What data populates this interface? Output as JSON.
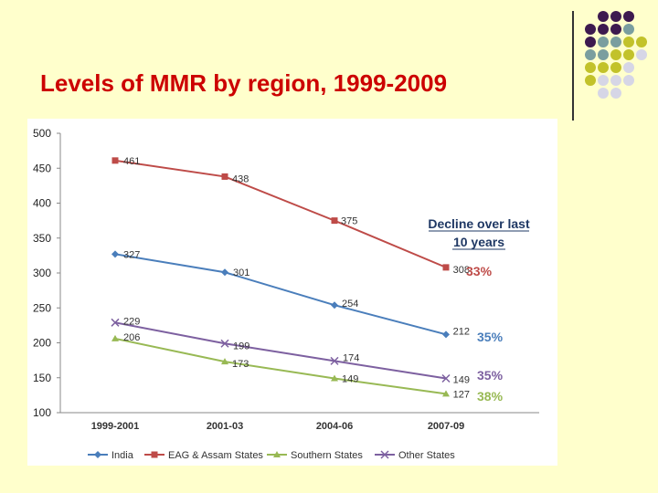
{
  "slide": {
    "title": "Levels of MMR by region, 1999-2009"
  },
  "decoration": {
    "dot_colors": [
      "#3d1a4f",
      "#7a9e9f",
      "#c2c22a",
      "#d6d6e6"
    ]
  },
  "chart_data": {
    "type": "line",
    "title": "",
    "xlabel": "",
    "ylabel": "",
    "categories": [
      "1999-2001",
      "2001-03",
      "2004-06",
      "2007-09"
    ],
    "ylim": [
      100,
      500
    ],
    "yticks": [
      100,
      150,
      200,
      250,
      300,
      350,
      400,
      450,
      500
    ],
    "grid": false,
    "legend_position": "bottom",
    "series": [
      {
        "name": "India",
        "values": [
          327,
          301,
          254,
          212
        ],
        "color": "#4a7ebb",
        "marker": "diamond",
        "decline": "35%"
      },
      {
        "name": "EAG & Assam States",
        "values": [
          461,
          438,
          375,
          308
        ],
        "color": "#be4b48",
        "marker": "square",
        "decline": "33%"
      },
      {
        "name": "Southern States",
        "values": [
          206,
          173,
          149,
          127
        ],
        "color": "#98b954",
        "marker": "triangle",
        "decline": "38%"
      },
      {
        "name": "Other States",
        "values": [
          229,
          199,
          174,
          149
        ],
        "color": "#7d60a0",
        "marker": "x",
        "decline": "35%"
      }
    ],
    "annotation": {
      "line1": "Decline over last",
      "line2": "10 years"
    }
  }
}
